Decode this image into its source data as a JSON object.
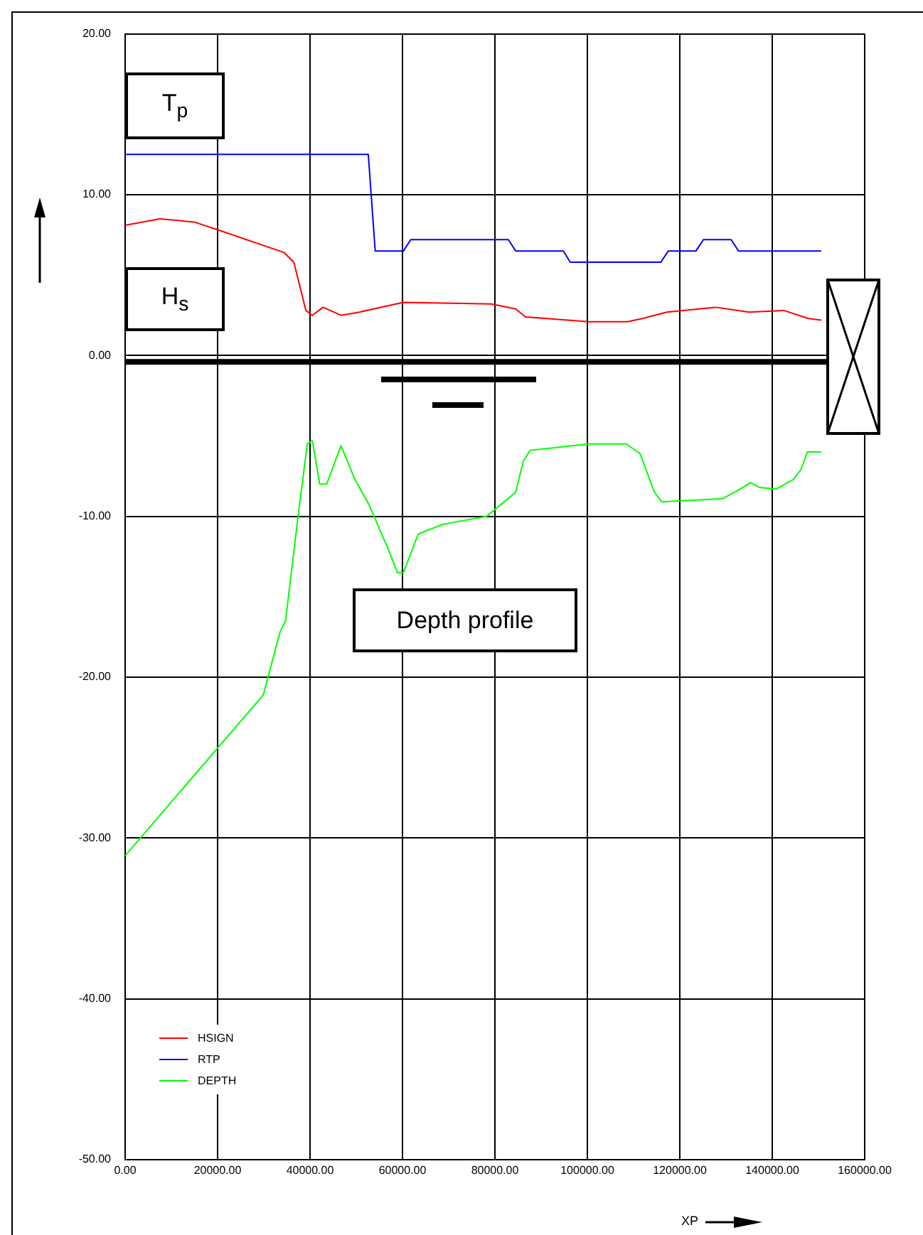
{
  "chart_data": {
    "type": "line",
    "xlabel": "XP",
    "annotations": [
      "T$_{p}$",
      "H$_{s}$",
      "Depth profile"
    ],
    "xlim": [
      0,
      160000
    ],
    "xticks": [
      {
        "value": 0,
        "label": "0.00"
      },
      {
        "value": 20000,
        "label": "20000.00"
      },
      {
        "value": 40000,
        "label": "40000.00"
      },
      {
        "value": 60000,
        "label": "60000.00"
      },
      {
        "value": 80000,
        "label": "80000.00"
      },
      {
        "value": 100000,
        "label": "100000.00"
      },
      {
        "value": 120000,
        "label": "120000.00"
      },
      {
        "value": 140000,
        "label": "140000.00"
      },
      {
        "value": 160000,
        "label": "160000.00"
      }
    ],
    "ylim": [
      -50,
      20
    ],
    "yticks": [
      {
        "value": -50,
        "label": "-50.00"
      },
      {
        "value": -40,
        "label": "-40.00"
      },
      {
        "value": -30,
        "label": "-30.00"
      },
      {
        "value": -20,
        "label": "-20.00"
      },
      {
        "value": -10,
        "label": "-10.00"
      },
      {
        "value": 0,
        "label": "0.00"
      },
      {
        "value": 10,
        "label": "10.00"
      },
      {
        "value": 20,
        "label": "20.00"
      }
    ],
    "grid": true,
    "legend": "bottom left",
    "marker": "none",
    "line_style": "solid",
    "ref_lines": [
      {
        "axis": "y",
        "value": -0.4,
        "color": "#000000"
      }
    ],
    "series": [
      {
        "name": "HSIGN",
        "color": "#ff0000",
        "x": [
          0,
          7500,
          14900,
          20200,
          34400,
          36500,
          39100,
          40500,
          42800,
          46700,
          50700,
          60200,
          79200,
          84500,
          86600,
          100300,
          108700,
          111900,
          117200,
          127700,
          135000,
          142500,
          147800,
          150600
        ],
        "values": [
          8.1,
          8.5,
          8.3,
          7.8,
          6.4,
          5.8,
          2.8,
          2.5,
          3.0,
          2.5,
          2.7,
          3.3,
          3.2,
          2.9,
          2.4,
          2.1,
          2.1,
          2.3,
          2.7,
          3.0,
          2.7,
          2.8,
          2.3,
          2.2
        ]
      },
      {
        "name": "RTP",
        "color": "#0000ff",
        "x": [
          0,
          52600,
          54100,
          60200,
          61800,
          82900,
          84500,
          94800,
          96300,
          115900,
          117500,
          123500,
          125100,
          131100,
          132700,
          150600
        ],
        "values": [
          12.5,
          12.5,
          6.5,
          6.5,
          7.2,
          7.2,
          6.5,
          6.5,
          5.8,
          5.8,
          6.5,
          6.5,
          7.2,
          7.2,
          6.5,
          6.5
        ]
      },
      {
        "name": "DEPTH",
        "color": "#00ff00",
        "x": [
          0,
          29900,
          33500,
          34700,
          37500,
          39400,
          40500,
          42100,
          43600,
          46700,
          49700,
          52800,
          57000,
          58900,
          60200,
          63400,
          68700,
          78200,
          84500,
          86100,
          87600,
          100300,
          108400,
          111400,
          114500,
          116100,
          129300,
          132500,
          135300,
          137200,
          140900,
          144600,
          146200,
          147600,
          150600
        ],
        "values": [
          -31.1,
          -21.1,
          -17.2,
          -16.5,
          -9.8,
          -5.5,
          -5.3,
          -8.0,
          -8.0,
          -5.6,
          -7.7,
          -9.3,
          -12.1,
          -13.5,
          -13.5,
          -11.1,
          -10.5,
          -10.0,
          -8.5,
          -6.6,
          -5.9,
          -5.5,
          -5.5,
          -6.1,
          -8.5,
          -9.1,
          -8.9,
          -8.4,
          -7.9,
          -8.2,
          -8.3,
          -7.7,
          -7.1,
          -6.0,
          -6.0
        ]
      }
    ]
  }
}
